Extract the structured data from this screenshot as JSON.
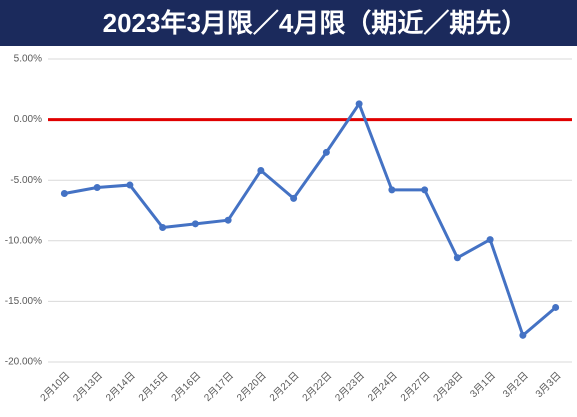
{
  "chart_data": {
    "type": "line",
    "title": "2023年3月限／4月限（期近／期先）",
    "categories": [
      "2月10日",
      "2月13日",
      "2月14日",
      "2月15日",
      "2月16日",
      "2月17日",
      "2月20日",
      "2月21日",
      "2月22日",
      "2月23日",
      "2月24日",
      "2月27日",
      "2月28日",
      "3月1日",
      "3月2日",
      "3月3日"
    ],
    "series": [
      {
        "color": "#4472c4",
        "values": [
          -6.1,
          -5.6,
          -5.4,
          -8.9,
          -8.6,
          -8.3,
          -4.2,
          -6.5,
          -2.7,
          1.3,
          -5.8,
          -5.8,
          -11.4,
          -9.9,
          -17.8,
          -15.5
        ]
      }
    ],
    "ylim": [
      -20,
      5
    ],
    "yticks": [
      {
        "value": -20,
        "label": "-20.00%"
      },
      {
        "value": -15,
        "label": "-15.00%"
      },
      {
        "value": -10,
        "label": "-10.00%"
      },
      {
        "value": -5,
        "label": "-5.00%"
      },
      {
        "value": 0,
        "label": "0.00%"
      },
      {
        "value": 5,
        "label": "5.00%"
      }
    ],
    "grid": true,
    "reference_line": {
      "value": 0,
      "color": "#e00000"
    }
  }
}
